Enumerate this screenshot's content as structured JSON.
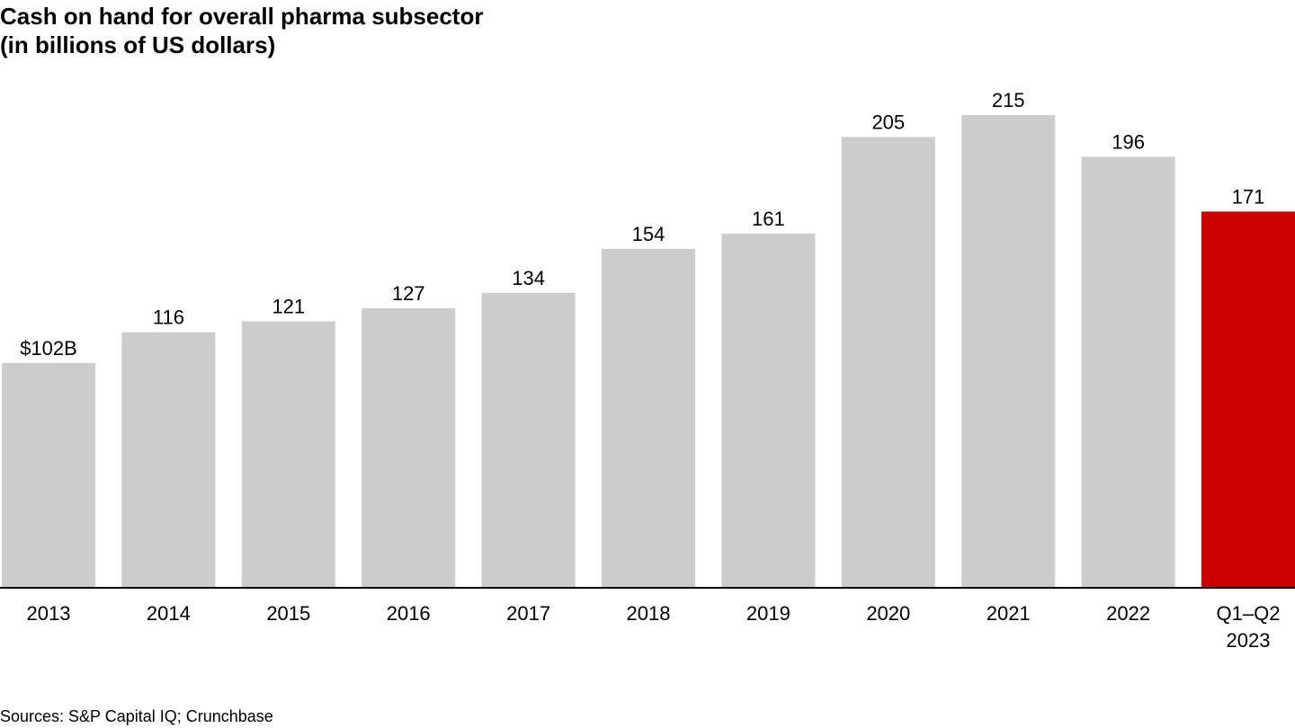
{
  "chart_data": {
    "type": "bar",
    "title": "Cash on hand for overall pharma subsector",
    "subtitle": "(in billions of US dollars)",
    "categories": [
      "2013",
      "2014",
      "2015",
      "2016",
      "2017",
      "2018",
      "2019",
      "2020",
      "2021",
      "2022",
      "Q1–Q2 2023"
    ],
    "category_lines": [
      [
        "2013"
      ],
      [
        "2014"
      ],
      [
        "2015"
      ],
      [
        "2016"
      ],
      [
        "2017"
      ],
      [
        "2018"
      ],
      [
        "2019"
      ],
      [
        "2020"
      ],
      [
        "2021"
      ],
      [
        "2022"
      ],
      [
        "Q1–Q2",
        "2023"
      ]
    ],
    "values": [
      102,
      116,
      121,
      127,
      134,
      154,
      161,
      205,
      215,
      196,
      171
    ],
    "data_labels": [
      "$102B",
      "116",
      "121",
      "127",
      "134",
      "154",
      "161",
      "205",
      "215",
      "196",
      "171"
    ],
    "bar_colors": [
      "#cccccc",
      "#cccccc",
      "#cccccc",
      "#cccccc",
      "#cccccc",
      "#cccccc",
      "#cccccc",
      "#cccccc",
      "#cccccc",
      "#cccccc",
      "#cc0000"
    ],
    "xlabel": "",
    "ylabel": "",
    "ylim": [
      0,
      215
    ],
    "grid": false,
    "legend": "none"
  },
  "footer": {
    "source": "Sources: S&P Capital IQ; Crunchbase"
  },
  "colors": {
    "bar_default": "#cccccc",
    "bar_highlight": "#cc0000",
    "axis": "#000000",
    "text": "#000000"
  }
}
